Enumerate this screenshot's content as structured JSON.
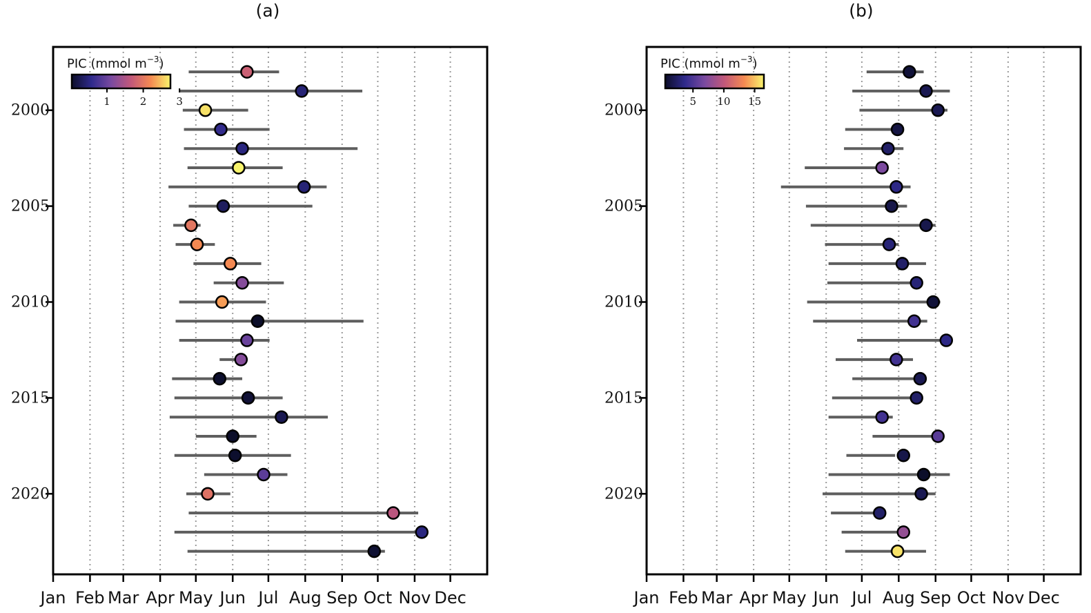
{
  "chart_data": [
    {
      "type": "scatter",
      "title": "(a)",
      "x_axis": {
        "tick_labels": [
          "Jan",
          "Feb",
          "Mar",
          "Apr",
          "May",
          "Jun",
          "Jul",
          "Aug",
          "Sep",
          "Oct",
          "Nov",
          "Dec"
        ],
        "tick_doy": [
          1,
          32,
          60,
          91,
          121,
          152,
          182,
          213,
          244,
          274,
          305,
          335
        ],
        "range_doy": [
          1,
          366
        ]
      },
      "y_axis": {
        "tick_labels": [
          "2000",
          "2005",
          "2010",
          "2015",
          "2020"
        ],
        "tick_values": [
          2000,
          2005,
          2010,
          2015,
          2020
        ],
        "range": [
          1996.7,
          2024.2
        ],
        "inverted": true
      },
      "colorbar": {
        "label": "PIC (mmol m",
        "exponent": "−3",
        "label_close": ")",
        "tick_labels": [
          "1",
          "2",
          "3"
        ],
        "ticks": [
          1,
          2,
          3
        ],
        "range": [
          0.03,
          2.75
        ],
        "colormap": "plasma"
      },
      "series": [
        {
          "year": 1998,
          "start": 115,
          "end": 191,
          "value": 164,
          "pic": 1.75
        },
        {
          "year": 1999,
          "start": 107,
          "end": 261,
          "value": 210,
          "pic": 0.45
        },
        {
          "year": 2000,
          "start": 110,
          "end": 165,
          "value": 129,
          "pic": 2.65
        },
        {
          "year": 2001,
          "start": 111,
          "end": 183,
          "value": 142,
          "pic": 0.6
        },
        {
          "year": 2002,
          "start": 111,
          "end": 257,
          "value": 160,
          "pic": 0.5
        },
        {
          "year": 2003,
          "start": 114,
          "end": 194,
          "value": 157,
          "pic": 2.75
        },
        {
          "year": 2004,
          "start": 98,
          "end": 231,
          "value": 212,
          "pic": 0.45
        },
        {
          "year": 2005,
          "start": 115,
          "end": 219,
          "value": 144,
          "pic": 0.32
        },
        {
          "year": 2006,
          "start": 102,
          "end": 125,
          "value": 117,
          "pic": 2.0
        },
        {
          "year": 2007,
          "start": 104,
          "end": 137,
          "value": 122,
          "pic": 2.2
        },
        {
          "year": 2008,
          "start": 119,
          "end": 176,
          "value": 150,
          "pic": 2.2
        },
        {
          "year": 2009,
          "start": 136,
          "end": 195,
          "value": 160,
          "pic": 1.2
        },
        {
          "year": 2010,
          "start": 107,
          "end": 180,
          "value": 143,
          "pic": 2.3
        },
        {
          "year": 2011,
          "start": 104,
          "end": 262,
          "value": 173,
          "pic": 0.03
        },
        {
          "year": 2012,
          "start": 107,
          "end": 183,
          "value": 164,
          "pic": 1.0
        },
        {
          "year": 2013,
          "start": 141,
          "end": 155,
          "value": 159,
          "pic": 1.2
        },
        {
          "year": 2014,
          "start": 101,
          "end": 160,
          "value": 141,
          "pic": 0.05
        },
        {
          "year": 2015,
          "start": 103,
          "end": 194,
          "value": 165,
          "pic": 0.1
        },
        {
          "year": 2016,
          "start": 99,
          "end": 232,
          "value": 193,
          "pic": 0.25
        },
        {
          "year": 2017,
          "start": 121,
          "end": 172,
          "value": 152,
          "pic": 0.03
        },
        {
          "year": 2018,
          "start": 103,
          "end": 201,
          "value": 154,
          "pic": 0.05
        },
        {
          "year": 2019,
          "start": 128,
          "end": 198,
          "value": 178,
          "pic": 0.9
        },
        {
          "year": 2020,
          "start": 113,
          "end": 150,
          "value": 131,
          "pic": 1.95
        },
        {
          "year": 2021,
          "start": 115,
          "end": 308,
          "value": 287,
          "pic": 1.6
        },
        {
          "year": 2022,
          "start": 103,
          "end": 308,
          "value": 311,
          "pic": 0.5
        },
        {
          "year": 2023,
          "start": 114,
          "end": 280,
          "value": 271,
          "pic": 0.08
        }
      ]
    },
    {
      "type": "scatter",
      "title": "(b)",
      "x_axis": {
        "tick_labels": [
          "Jan",
          "Feb",
          "Mar",
          "Apr",
          "May",
          "Jun",
          "Jul",
          "Aug",
          "Sep",
          "Oct",
          "Nov",
          "Dec"
        ],
        "tick_doy": [
          1,
          32,
          60,
          91,
          121,
          152,
          182,
          213,
          244,
          274,
          305,
          335
        ],
        "range_doy": [
          1,
          366
        ]
      },
      "y_axis": {
        "tick_labels": [
          "2000",
          "2005",
          "2010",
          "2015",
          "2020"
        ],
        "tick_values": [
          2000,
          2005,
          2010,
          2015,
          2020
        ],
        "range": [
          1996.7,
          2024.2
        ],
        "inverted": true
      },
      "colorbar": {
        "label": "PIC (mmol m",
        "exponent": "−3",
        "label_close": ")",
        "tick_labels": [
          "5",
          "10",
          "15"
        ],
        "ticks": [
          5,
          10,
          15
        ],
        "range": [
          0.5,
          16.5
        ],
        "colormap": "plasma"
      },
      "series": [
        {
          "year": 1998,
          "start": 186,
          "end": 234,
          "value": 222,
          "pic": 1.0
        },
        {
          "year": 1999,
          "start": 174,
          "end": 256,
          "value": 236,
          "pic": 1.8
        },
        {
          "year": 2000,
          "start": 180,
          "end": 254,
          "value": 246,
          "pic": 1.8
        },
        {
          "year": 2001,
          "start": 168,
          "end": 214,
          "value": 212,
          "pic": 1.3
        },
        {
          "year": 2002,
          "start": 167,
          "end": 217,
          "value": 204,
          "pic": 2.5
        },
        {
          "year": 2003,
          "start": 134,
          "end": 199,
          "value": 199,
          "pic": 7.0
        },
        {
          "year": 2004,
          "start": 114,
          "end": 223,
          "value": 211,
          "pic": 3.5
        },
        {
          "year": 2005,
          "start": 135,
          "end": 220,
          "value": 207,
          "pic": 1.5
        },
        {
          "year": 2006,
          "start": 139,
          "end": 244,
          "value": 236,
          "pic": 1.6
        },
        {
          "year": 2007,
          "start": 151,
          "end": 213,
          "value": 205,
          "pic": 3.0
        },
        {
          "year": 2008,
          "start": 154,
          "end": 236,
          "value": 216,
          "pic": 2.5
        },
        {
          "year": 2009,
          "start": 153,
          "end": 232,
          "value": 228,
          "pic": 3.0
        },
        {
          "year": 2010,
          "start": 136,
          "end": 248,
          "value": 242,
          "pic": 1.0
        },
        {
          "year": 2011,
          "start": 141,
          "end": 237,
          "value": 226,
          "pic": 4.5
        },
        {
          "year": 2012,
          "start": 178,
          "end": 249,
          "value": 253,
          "pic": 3.5
        },
        {
          "year": 2013,
          "start": 160,
          "end": 225,
          "value": 211,
          "pic": 4.5
        },
        {
          "year": 2014,
          "start": 174,
          "end": 236,
          "value": 231,
          "pic": 1.8
        },
        {
          "year": 2015,
          "start": 157,
          "end": 226,
          "value": 228,
          "pic": 2.5
        },
        {
          "year": 2016,
          "start": 154,
          "end": 208,
          "value": 199,
          "pic": 4.5
        },
        {
          "year": 2017,
          "start": 191,
          "end": 245,
          "value": 246,
          "pic": 5.5
        },
        {
          "year": 2018,
          "start": 169,
          "end": 210,
          "value": 217,
          "pic": 1.5
        },
        {
          "year": 2019,
          "start": 154,
          "end": 256,
          "value": 234,
          "pic": 0.5
        },
        {
          "year": 2020,
          "start": 149,
          "end": 244,
          "value": 232,
          "pic": 1.8
        },
        {
          "year": 2021,
          "start": 156,
          "end": 193,
          "value": 197,
          "pic": 2.5
        },
        {
          "year": 2022,
          "start": 165,
          "end": 216,
          "value": 217,
          "pic": 8.0
        },
        {
          "year": 2023,
          "start": 168,
          "end": 236,
          "value": 212,
          "pic": 16.0
        }
      ]
    }
  ]
}
